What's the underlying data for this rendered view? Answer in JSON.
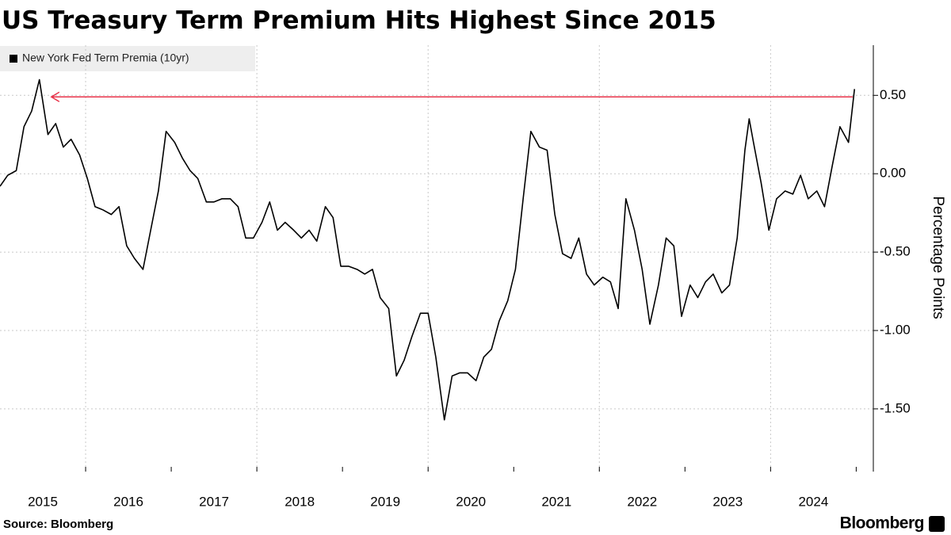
{
  "chart_data": {
    "type": "line",
    "title": "US Treasury Term Premium Hits Highest Since 2015",
    "y_label": "Percentage Points",
    "source": "Source: Bloomberg",
    "brand": "Bloomberg",
    "xlim": [
      2015,
      2025.2
    ],
    "xticks": [
      2015,
      2016,
      2017,
      2018,
      2019,
      2020,
      2021,
      2022,
      2023,
      2024,
      2025
    ],
    "x_labels": [
      "2015",
      "2016",
      "2017",
      "2018",
      "2019",
      "2020",
      "2021",
      "2022",
      "2023",
      "2024"
    ],
    "ylim": [
      -1.9,
      0.82
    ],
    "yticks": [
      {
        "value": 0.5,
        "label": "0.50"
      },
      {
        "value": 0,
        "label": "0.00"
      },
      {
        "value": -0.5,
        "label": "-0.50"
      },
      {
        "value": -1,
        "label": "-1.00"
      },
      {
        "value": -1.5,
        "label": "-1.50"
      }
    ],
    "grid": true,
    "legend_position": "top-left",
    "arrow": {
      "y": 0.49,
      "x": [
        2015.6,
        2024.96
      ],
      "color": "#e8334a"
    },
    "series": [
      {
        "name": "New York Fed Term Premia (10yr)",
        "color": "#000000",
        "x": [
          2015.0,
          2015.09,
          2015.19,
          2015.28,
          2015.37,
          2015.46,
          2015.56,
          2015.65,
          2015.74,
          2015.83,
          2015.93,
          2016.02,
          2016.11,
          2016.2,
          2016.3,
          2016.39,
          2016.48,
          2016.57,
          2016.67,
          2016.76,
          2016.85,
          2016.94,
          2017.04,
          2017.13,
          2017.22,
          2017.31,
          2017.41,
          2017.5,
          2017.59,
          2017.69,
          2017.78,
          2017.87,
          2017.96,
          2018.06,
          2018.15,
          2018.24,
          2018.33,
          2018.43,
          2018.52,
          2018.61,
          2018.7,
          2018.8,
          2018.89,
          2018.98,
          2019.07,
          2019.17,
          2019.26,
          2019.35,
          2019.44,
          2019.54,
          2019.63,
          2019.72,
          2019.81,
          2019.91,
          2020.0,
          2020.09,
          2020.19,
          2020.28,
          2020.37,
          2020.46,
          2020.56,
          2020.65,
          2020.74,
          2020.83,
          2020.93,
          2021.02,
          2021.11,
          2021.2,
          2021.3,
          2021.39,
          2021.48,
          2021.57,
          2021.67,
          2021.76,
          2021.85,
          2021.94,
          2022.04,
          2022.13,
          2022.22,
          2022.31,
          2022.41,
          2022.5,
          2022.59,
          2022.69,
          2022.78,
          2022.87,
          2022.96,
          2023.06,
          2023.15,
          2023.24,
          2023.33,
          2023.43,
          2023.52,
          2023.61,
          2023.7,
          2023.75,
          2023.8,
          2023.89,
          2023.98,
          2024.07,
          2024.17,
          2024.26,
          2024.35,
          2024.44,
          2024.54,
          2024.63,
          2024.72,
          2024.81,
          2024.91,
          2024.98
        ],
        "values": [
          -0.08,
          -0.01,
          0.02,
          0.3,
          0.4,
          0.6,
          0.25,
          0.32,
          0.17,
          0.22,
          0.12,
          -0.03,
          -0.21,
          -0.23,
          -0.26,
          -0.21,
          -0.46,
          -0.54,
          -0.61,
          -0.36,
          -0.11,
          0.27,
          0.2,
          0.1,
          0.02,
          -0.03,
          -0.18,
          -0.18,
          -0.16,
          -0.16,
          -0.21,
          -0.41,
          -0.41,
          -0.31,
          -0.18,
          -0.36,
          -0.31,
          -0.36,
          -0.41,
          -0.36,
          -0.43,
          -0.21,
          -0.28,
          -0.59,
          -0.59,
          -0.61,
          -0.64,
          -0.61,
          -0.79,
          -0.86,
          -1.29,
          -1.19,
          -1.04,
          -0.89,
          -0.89,
          -1.17,
          -1.57,
          -1.29,
          -1.27,
          -1.27,
          -1.32,
          -1.17,
          -1.12,
          -0.94,
          -0.81,
          -0.61,
          -0.16,
          0.27,
          0.17,
          0.15,
          -0.26,
          -0.51,
          -0.54,
          -0.41,
          -0.64,
          -0.71,
          -0.66,
          -0.69,
          -0.86,
          -0.16,
          -0.36,
          -0.61,
          -0.96,
          -0.71,
          -0.41,
          -0.46,
          -0.91,
          -0.71,
          -0.79,
          -0.69,
          -0.64,
          -0.76,
          -0.71,
          -0.41,
          0.15,
          0.35,
          0.2,
          -0.06,
          -0.36,
          -0.16,
          -0.11,
          -0.13,
          -0.01,
          -0.16,
          -0.11,
          -0.21,
          0.05,
          0.3,
          0.2,
          0.54
        ]
      }
    ]
  }
}
